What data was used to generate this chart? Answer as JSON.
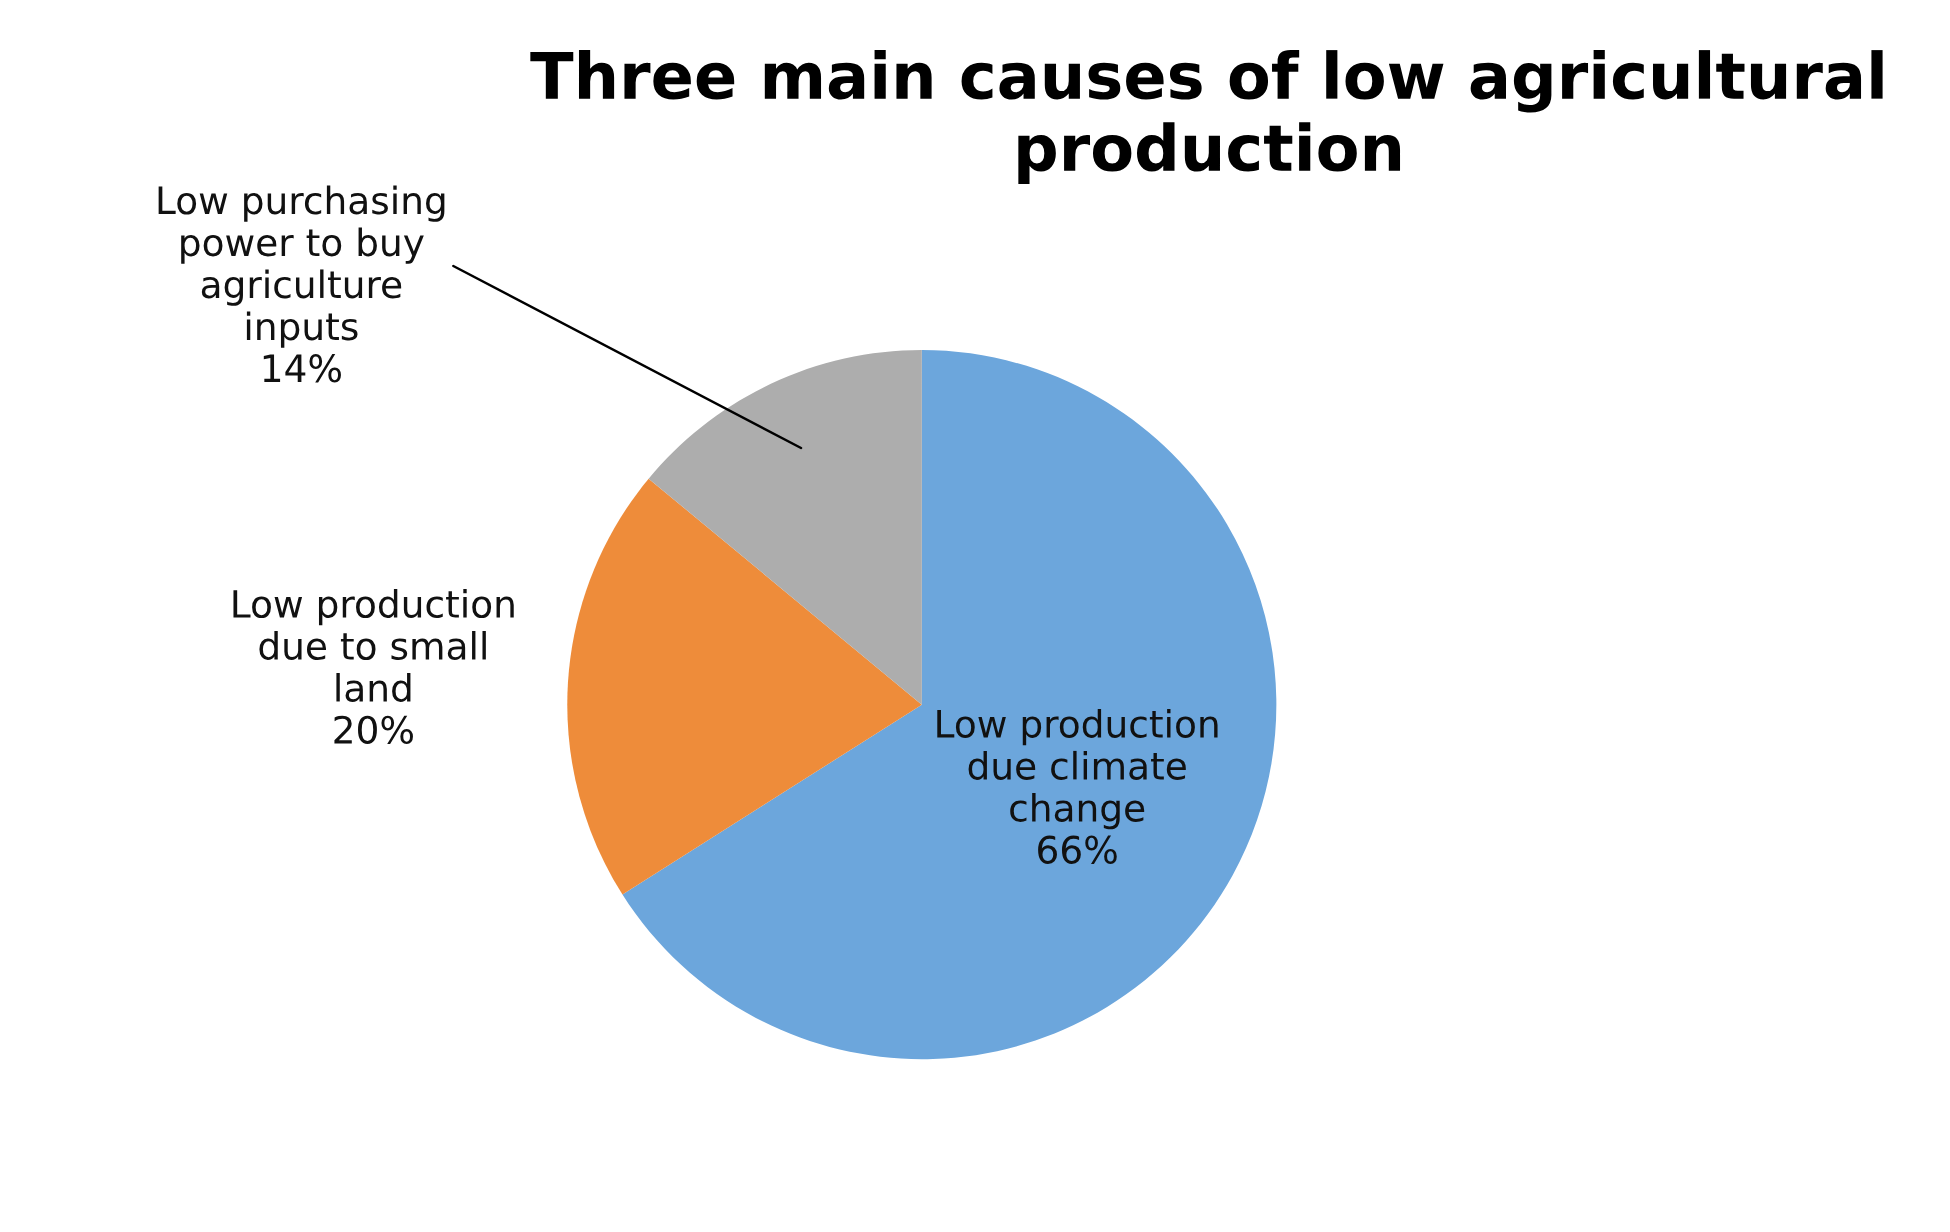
{
  "chart_data": {
    "type": "pie",
    "title": "Three main causes of low agricultural production",
    "categories": [
      "Low production due climate change",
      "Low production due to small land",
      "Low purchasing power to buy agriculture inputs"
    ],
    "values": [
      66,
      20,
      14
    ],
    "colors": [
      "#6ca6dc",
      "#ee8c3a",
      "#adadad"
    ],
    "value_labels": [
      "66%",
      "20%",
      "14%"
    ]
  }
}
